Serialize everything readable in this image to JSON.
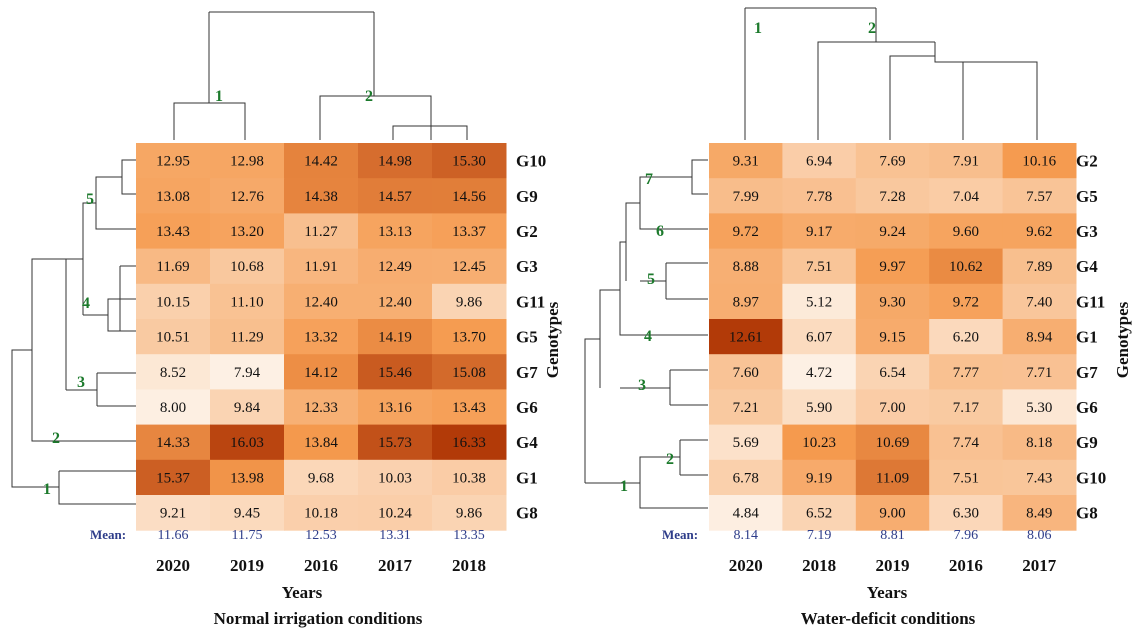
{
  "chart_data": [
    {
      "type": "heatmap",
      "title": "Normal irrigation conditions",
      "xlabel": "Years",
      "ylabel": "Genotypes",
      "mean_label": "Mean:",
      "columns": [
        "2020",
        "2019",
        "2016",
        "2017",
        "2018"
      ],
      "rows": [
        "G10",
        "G9",
        "G2",
        "G3",
        "G11",
        "G5",
        "G7",
        "G6",
        "G4",
        "G1",
        "G8"
      ],
      "values": [
        [
          12.95,
          12.98,
          14.42,
          14.98,
          15.3
        ],
        [
          13.08,
          12.76,
          14.38,
          14.57,
          14.56
        ],
        [
          13.43,
          13.2,
          11.27,
          13.13,
          13.37
        ],
        [
          11.69,
          10.68,
          11.91,
          12.49,
          12.45
        ],
        [
          10.15,
          11.1,
          12.4,
          12.4,
          9.86
        ],
        [
          10.51,
          11.29,
          13.32,
          14.19,
          13.7
        ],
        [
          8.52,
          7.94,
          14.12,
          15.46,
          15.08
        ],
        [
          8.0,
          9.84,
          12.33,
          13.16,
          13.43
        ],
        [
          14.33,
          16.03,
          13.84,
          15.73,
          16.33
        ],
        [
          15.37,
          13.98,
          9.68,
          10.03,
          10.38
        ],
        [
          9.21,
          9.45,
          10.18,
          10.24,
          9.86
        ]
      ],
      "means": [
        "11.66",
        "11.75",
        "12.53",
        "13.31",
        "13.35"
      ],
      "col_cluster_labels": [
        "1",
        "2"
      ],
      "row_cluster_labels": [
        "1",
        "2",
        "3",
        "4",
        "5"
      ],
      "value_range": [
        7.94,
        16.33
      ]
    },
    {
      "type": "heatmap",
      "title": "Water-deficit conditions",
      "xlabel": "Years",
      "ylabel": "Genotypes",
      "mean_label": "Mean:",
      "columns": [
        "2020",
        "2018",
        "2019",
        "2016",
        "2017"
      ],
      "rows": [
        "G2",
        "G5",
        "G3",
        "G4",
        "G11",
        "G1",
        "G7",
        "G6",
        "G9",
        "G10",
        "G8"
      ],
      "values": [
        [
          9.31,
          6.94,
          7.69,
          7.91,
          10.16
        ],
        [
          7.99,
          7.78,
          7.28,
          7.04,
          7.57
        ],
        [
          9.72,
          9.17,
          9.24,
          9.6,
          9.62
        ],
        [
          8.88,
          7.51,
          9.97,
          10.62,
          7.89
        ],
        [
          8.97,
          5.12,
          9.3,
          9.72,
          7.4
        ],
        [
          12.61,
          6.07,
          9.15,
          6.2,
          8.94
        ],
        [
          7.6,
          4.72,
          6.54,
          7.77,
          7.71
        ],
        [
          7.21,
          5.9,
          7.0,
          7.17,
          5.3
        ],
        [
          5.69,
          10.23,
          10.69,
          7.74,
          8.18
        ],
        [
          6.78,
          9.19,
          11.09,
          7.51,
          7.43
        ],
        [
          4.84,
          6.52,
          9.0,
          6.3,
          8.49
        ]
      ],
      "means": [
        "8.14",
        "7.19",
        "8.81",
        "7.96",
        "8.06"
      ],
      "col_cluster_labels": [
        "1",
        "2"
      ],
      "row_cluster_labels": [
        "1",
        "2",
        "3",
        "4",
        "5",
        "6",
        "7"
      ],
      "value_range": [
        4.72,
        12.61
      ]
    }
  ],
  "colors": {
    "low": "#fdf0e4",
    "mid": "#f59a4e",
    "high": "#b23a08",
    "mean_text": "#2e3d8a",
    "cluster_label": "#1c7a2c"
  }
}
